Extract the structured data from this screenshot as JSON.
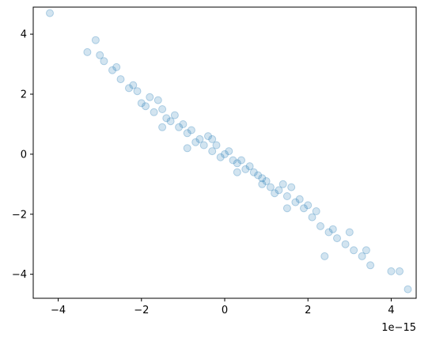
{
  "chart_data": {
    "type": "scatter",
    "title": "",
    "xlabel": "",
    "ylabel": "",
    "x_offset_label": "1e−15",
    "xlim": [
      -4.6,
      4.6
    ],
    "ylim": [
      -4.8,
      4.9
    ],
    "x_ticks": [
      -4,
      -2,
      0,
      2,
      4
    ],
    "x_tick_labels": [
      "−4",
      "−2",
      "0",
      "2",
      "4"
    ],
    "y_ticks": [
      -4,
      -2,
      0,
      2,
      4
    ],
    "y_tick_labels": [
      "−4",
      "−2",
      "0",
      "2",
      "4"
    ],
    "grid": false,
    "color": "#1f77b4",
    "series": [
      {
        "x": [
          -4.2,
          -3.3,
          -3.1,
          -2.9,
          -2.7,
          -2.5,
          -2.3,
          -2.1,
          -1.9,
          -1.7,
          -1.5,
          -1.3,
          -1.1,
          -0.9,
          -0.7,
          -0.5,
          -0.3,
          -0.1,
          0.1,
          0.3,
          0.5,
          0.7,
          0.9,
          1.1,
          1.3,
          1.5,
          1.7,
          1.9,
          2.1,
          2.3,
          2.5,
          2.7,
          2.9,
          3.1,
          3.3,
          3.5,
          4.0,
          4.2,
          4.4,
          -3.0,
          -2.6,
          -2.2,
          -1.8,
          -1.4,
          -1.0,
          -0.6,
          -0.2,
          0.2,
          0.6,
          1.0,
          1.4,
          1.8,
          2.2,
          2.6,
          3.0,
          -1.6,
          -1.2,
          -0.8,
          -0.4,
          0.0,
          0.4,
          0.8,
          1.2,
          1.6,
          2.0,
          -0.3,
          0.3,
          0.9,
          1.5,
          -0.9,
          -1.5,
          -2.0,
          2.4,
          3.4
        ],
        "y": [
          4.7,
          3.4,
          3.8,
          3.1,
          2.8,
          2.5,
          2.2,
          2.1,
          1.6,
          1.4,
          1.5,
          1.1,
          0.9,
          0.7,
          0.4,
          0.3,
          0.1,
          -0.1,
          0.1,
          -0.3,
          -0.5,
          -0.6,
          -0.8,
          -1.1,
          -1.2,
          -1.4,
          -1.6,
          -1.8,
          -2.1,
          -2.4,
          -2.6,
          -2.8,
          -3.0,
          -3.2,
          -3.4,
          -3.7,
          -3.9,
          -3.9,
          -4.5,
          3.3,
          2.9,
          2.3,
          1.9,
          1.2,
          1.0,
          0.5,
          0.3,
          -0.2,
          -0.4,
          -0.9,
          -1.0,
          -1.5,
          -1.9,
          -2.5,
          -2.6,
          1.8,
          1.3,
          0.8,
          0.6,
          0.0,
          -0.2,
          -0.7,
          -1.3,
          -1.1,
          -1.7,
          0.5,
          -0.6,
          -1.0,
          -1.8,
          0.2,
          0.9,
          1.7,
          -3.4,
          -3.2
        ]
      }
    ]
  }
}
